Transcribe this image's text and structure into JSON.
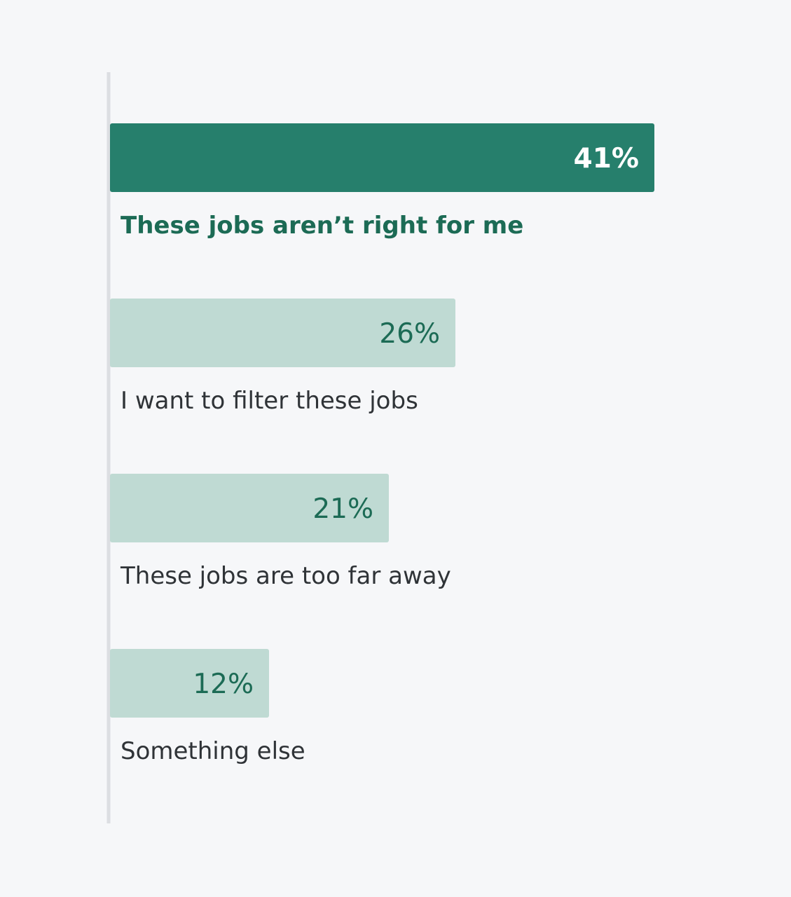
{
  "chart_data": {
    "type": "bar",
    "orientation": "horizontal",
    "categories": [
      "These jobs aren’t right for me",
      "I want to filter these jobs",
      "These jobs are too far away",
      "Something else"
    ],
    "values": [
      41,
      26,
      21,
      12
    ],
    "value_labels": [
      "41%",
      "26%",
      "21%",
      "12%"
    ],
    "unit": "%",
    "highlight_index": 0,
    "title": "",
    "xlabel": "",
    "ylabel": "",
    "xlim": [
      0,
      41
    ],
    "grid": false,
    "legend": "none"
  },
  "colors": {
    "background": "#f6f7f9",
    "axis_line": "#dcdee2",
    "highlight_bar": "#267f6c",
    "highlight_value_text": "#ffffff",
    "highlight_label_text": "#1c6b55",
    "bar": "#bfdad3",
    "value_text": "#1c6b55",
    "label_text": "#2f3337"
  }
}
